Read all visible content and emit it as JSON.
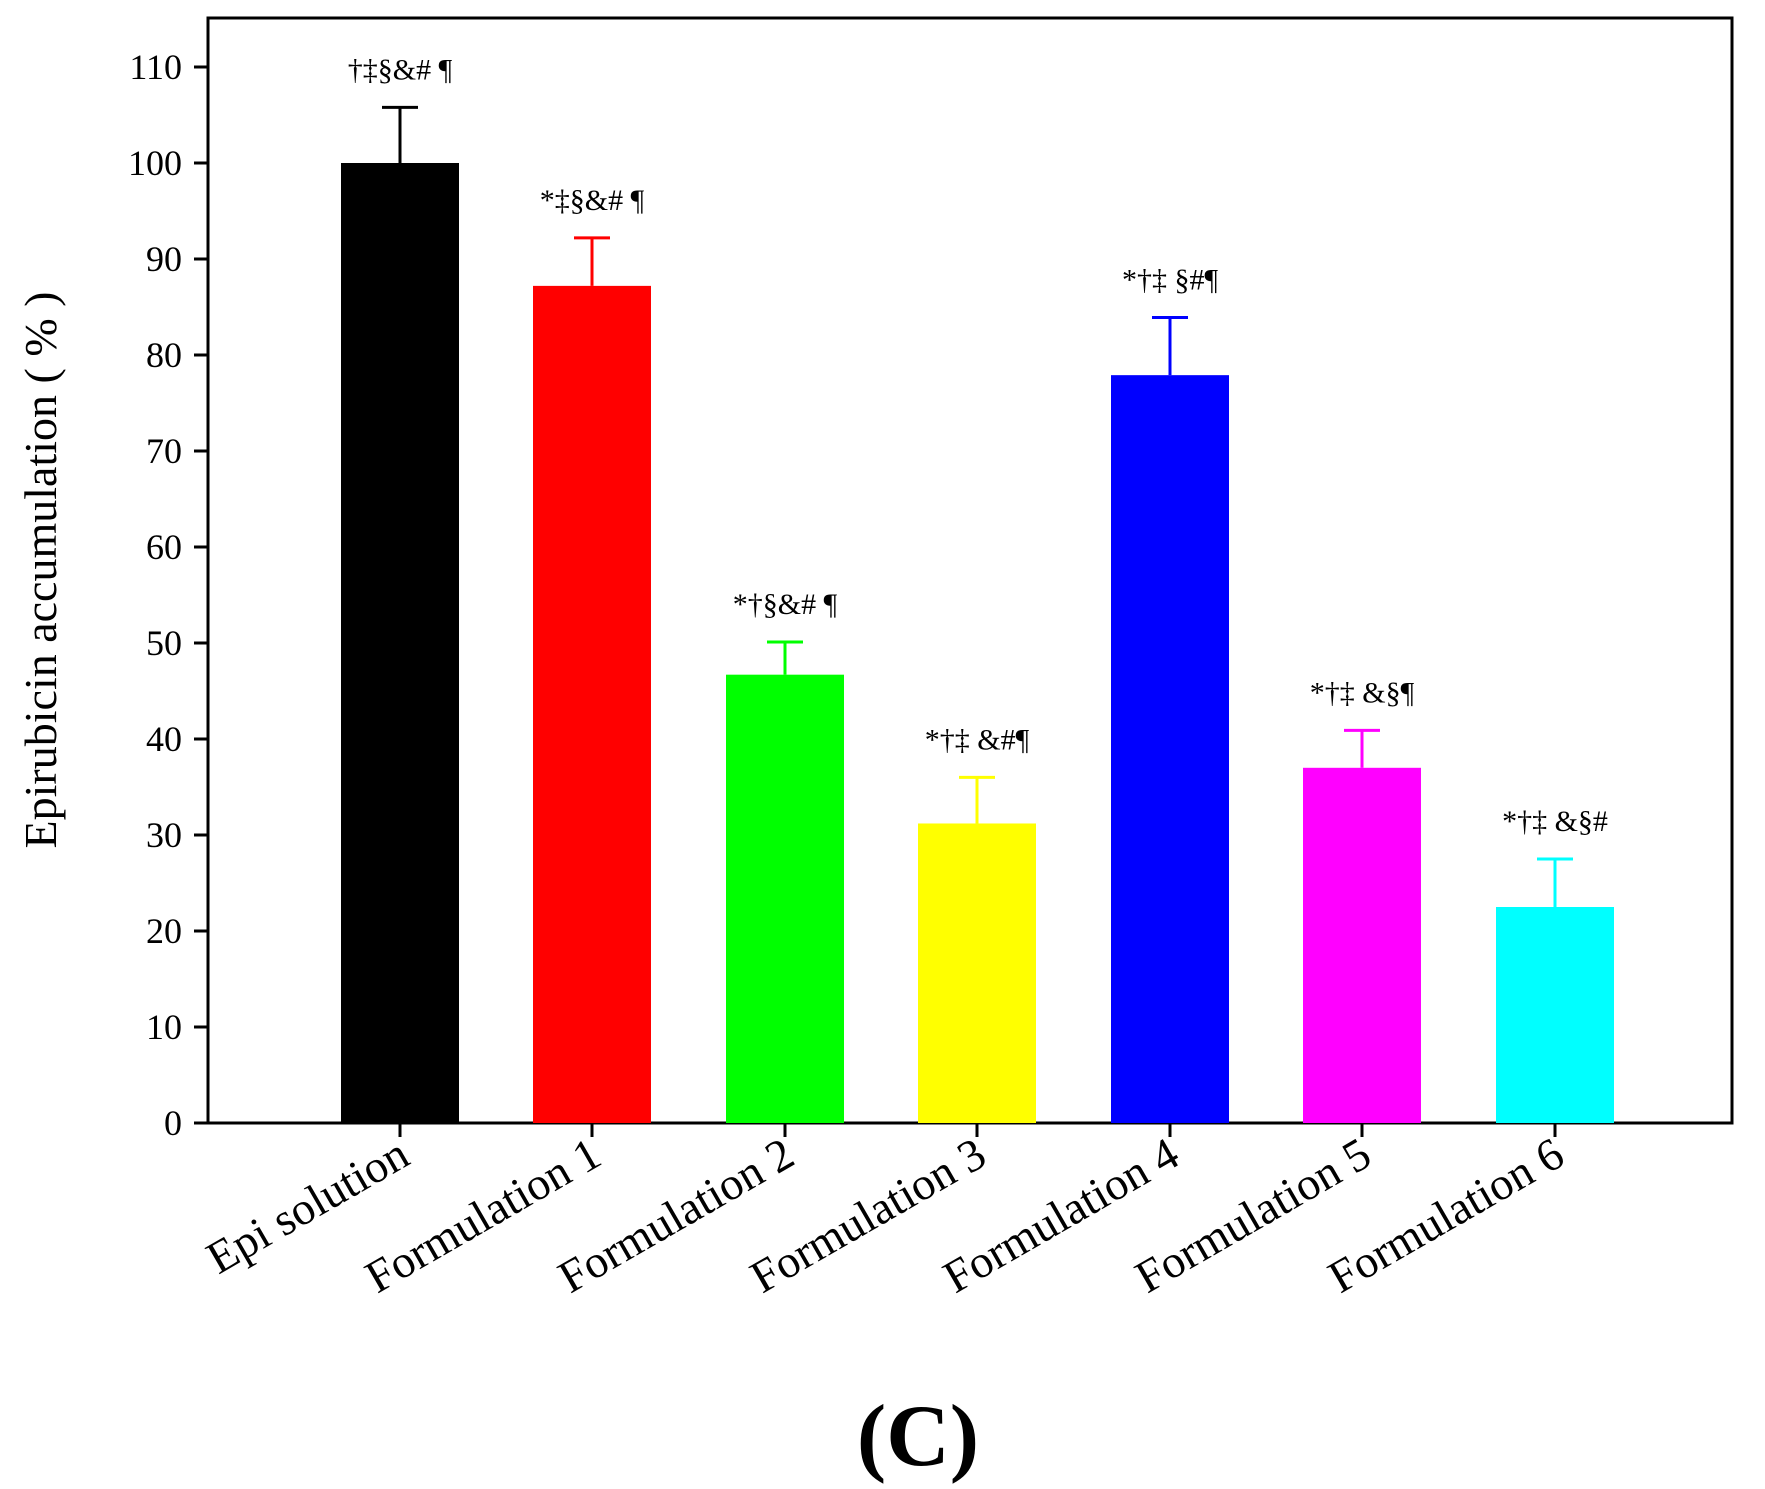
{
  "chart_data": {
    "type": "bar",
    "title": "",
    "xlabel": "",
    "ylabel": "Epirubicin accumulation ( % )",
    "ylim": [
      0,
      115
    ],
    "yticks": [
      0,
      10,
      20,
      30,
      40,
      50,
      60,
      70,
      80,
      90,
      100,
      110
    ],
    "grid": false,
    "panel_label": "(C)",
    "categories": [
      "Epi solution",
      "Formulation 1",
      "Formulation 2",
      "Formulation 3",
      "Formulation 4",
      "Formulation 5",
      "Formulation 6"
    ],
    "values": [
      100,
      87.2,
      46.7,
      31.2,
      77.9,
      37.0,
      22.5
    ],
    "errors": [
      5.8,
      5.0,
      3.4,
      4.8,
      6.0,
      3.9,
      5.0
    ],
    "colors": [
      "#000000",
      "#ff0000",
      "#00ff00",
      "#ffff00",
      "#0000ff",
      "#ff00ff",
      "#00ffff"
    ],
    "annotations": [
      "†‡§&# ¶",
      "*‡§&# ¶",
      "*†§&# ¶",
      "*†‡ &#¶",
      "*†‡ §#¶",
      "*†‡ &§¶",
      "*†‡ &§#"
    ]
  }
}
